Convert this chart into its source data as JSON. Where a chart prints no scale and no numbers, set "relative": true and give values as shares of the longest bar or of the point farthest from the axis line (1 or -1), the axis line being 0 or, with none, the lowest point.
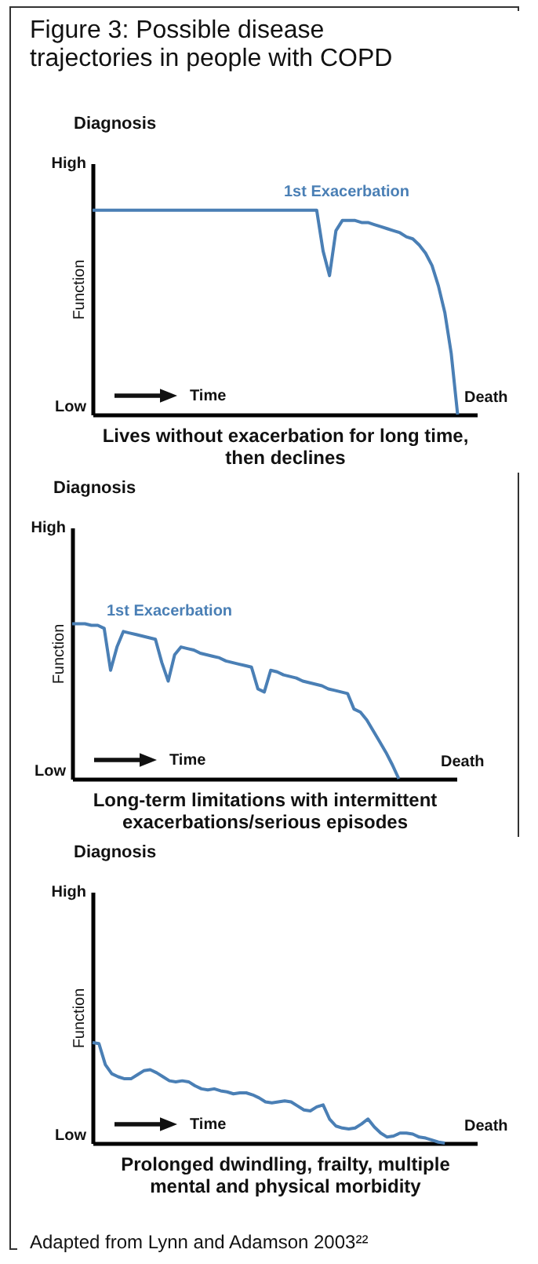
{
  "chart_data": [
    {
      "type": "line",
      "title": "Figure 3: Possible disease trajectories in people with COPD",
      "relative": true,
      "ylabel": "Function",
      "xlabel": "Lives without exacerbation for long time, then declines",
      "categories": [
        null,
        null,
        null,
        null,
        null,
        null,
        null,
        null,
        null,
        null,
        null,
        null,
        null,
        null,
        null,
        null,
        null,
        null,
        null,
        null,
        null,
        null,
        null,
        null,
        null,
        null,
        null,
        null,
        null,
        null,
        null,
        null,
        null,
        null,
        null,
        null,
        null,
        null,
        null,
        null,
        null,
        null,
        null,
        null,
        null,
        null,
        null,
        null,
        null,
        null,
        null,
        null,
        null,
        null,
        null,
        null,
        null,
        null,
        null,
        null,
        null
      ],
      "series": [
        {
          "color": "#4a7fb5",
          "values": [
            1,
            1,
            1,
            1,
            1,
            1,
            1,
            1,
            1,
            1,
            1,
            1,
            1,
            1,
            1,
            1,
            1,
            1,
            1,
            1,
            1,
            1,
            1,
            1,
            1,
            1,
            1,
            1,
            1,
            1,
            1,
            1,
            1,
            1,
            1,
            1,
            0.8,
            0.68,
            0.9,
            0.95,
            0.95,
            0.95,
            0.94,
            0.94,
            0.93,
            0.92,
            0.91,
            0.9,
            0.89,
            0.87,
            0.86,
            0.83,
            0.79,
            0.73,
            0.63,
            0.5,
            0.3,
            0,
            null,
            null,
            null
          ]
        }
      ],
      "annotations": [
        "Diagnosis",
        "High",
        "Low",
        "Time",
        "Death",
        "1st Exacerbation"
      ]
    },
    {
      "type": "line",
      "relative": true,
      "ylabel": "Function",
      "xlabel": "Long-term limitations with intermittent exacerbations/serious episodes",
      "categories": [
        null,
        null,
        null,
        null,
        null,
        null,
        null,
        null,
        null,
        null,
        null,
        null,
        null,
        null,
        null,
        null,
        null,
        null,
        null,
        null,
        null,
        null,
        null,
        null,
        null,
        null,
        null,
        null,
        null,
        null,
        null,
        null,
        null,
        null,
        null,
        null,
        null,
        null,
        null,
        null,
        null,
        null,
        null,
        null,
        null,
        null,
        null,
        null,
        null,
        null,
        null,
        null,
        null,
        null,
        null,
        null,
        null,
        null,
        null,
        null,
        null
      ],
      "series": [
        {
          "color": "#4a7fb5",
          "values": [
            1,
            1,
            1,
            0.99,
            0.99,
            0.97,
            0.7,
            0.85,
            0.95,
            0.94,
            0.93,
            0.92,
            0.91,
            0.9,
            0.75,
            0.63,
            0.8,
            0.85,
            0.84,
            0.83,
            0.81,
            0.8,
            0.79,
            0.78,
            0.76,
            0.75,
            0.74,
            0.73,
            0.72,
            0.58,
            0.56,
            0.7,
            0.69,
            0.67,
            0.66,
            0.65,
            0.63,
            0.62,
            0.61,
            0.6,
            0.58,
            0.57,
            0.56,
            0.55,
            0.45,
            0.43,
            0.38,
            0.31,
            0.24,
            0.17,
            0.09,
            0,
            null,
            null,
            null,
            null,
            null,
            null,
            null,
            null,
            null
          ]
        }
      ],
      "annotations": [
        "Diagnosis",
        "High",
        "Low",
        "Time",
        "Death",
        "1st Exacerbation"
      ]
    },
    {
      "type": "line",
      "relative": true,
      "ylabel": "Function",
      "xlabel": "Prolonged dwindling, frailty, multiple mental and physical morbidity",
      "categories": [
        null,
        null,
        null,
        null,
        null,
        null,
        null,
        null,
        null,
        null,
        null,
        null,
        null,
        null,
        null,
        null,
        null,
        null,
        null,
        null,
        null,
        null,
        null,
        null,
        null,
        null,
        null,
        null,
        null,
        null,
        null,
        null,
        null,
        null,
        null,
        null,
        null,
        null,
        null,
        null,
        null,
        null,
        null,
        null,
        null,
        null,
        null,
        null,
        null,
        null,
        null,
        null,
        null,
        null,
        null,
        null,
        null,
        null,
        null,
        null,
        null
      ],
      "series": [
        {
          "color": "#4a7fb5",
          "values": [
            1,
            0.99,
            0.78,
            0.69,
            0.66,
            0.64,
            0.64,
            0.68,
            0.72,
            0.73,
            0.7,
            0.66,
            0.62,
            0.61,
            0.62,
            0.61,
            0.57,
            0.54,
            0.53,
            0.54,
            0.52,
            0.51,
            0.49,
            0.5,
            0.5,
            0.48,
            0.45,
            0.41,
            0.4,
            0.41,
            0.42,
            0.41,
            0.37,
            0.33,
            0.32,
            0.36,
            0.38,
            0.24,
            0.17,
            0.15,
            0.14,
            0.15,
            0.19,
            0.24,
            0.16,
            0.1,
            0.06,
            0.07,
            0.1,
            0.1,
            0.09,
            0.06,
            0.05,
            0.03,
            0.01,
            0,
            null,
            null,
            null,
            null,
            null
          ]
        }
      ],
      "annotations": [
        "Diagnosis",
        "High",
        "Low",
        "Time",
        "Death",
        "Adapted from Lynn and Adamson 2003²²"
      ]
    }
  ]
}
